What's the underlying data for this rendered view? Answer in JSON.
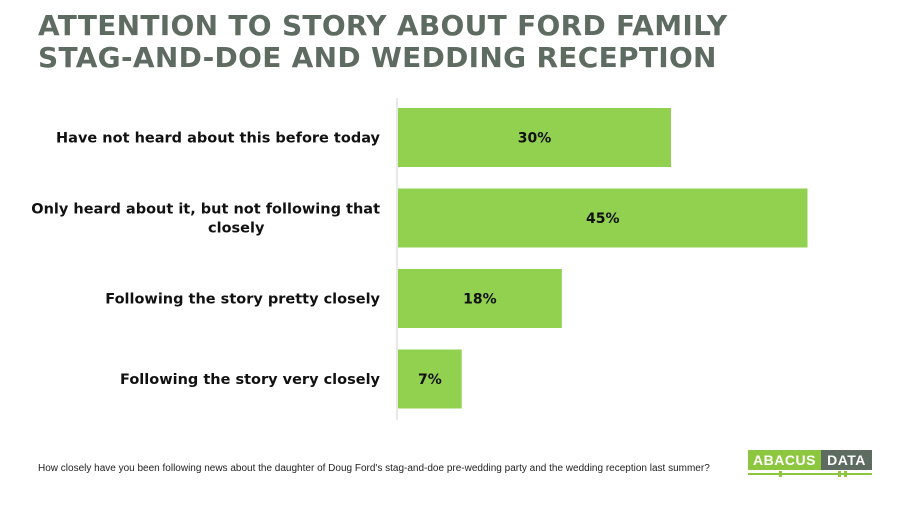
{
  "chart_data": {
    "type": "bar",
    "orientation": "horizontal",
    "title_lines": [
      "ATTENTION TO STORY ABOUT FORD FAMILY",
      "STAG-AND-DOE AND WEDDING RECEPTION"
    ],
    "categories": [
      [
        "Have not heard about this before today"
      ],
      [
        "Only heard about it, but not following that",
        "closely"
      ],
      [
        "Following the story pretty closely"
      ],
      [
        "Following the story very closely"
      ]
    ],
    "values": [
      30,
      45,
      18,
      7
    ],
    "value_labels": [
      "30%",
      "45%",
      "18%",
      "7%"
    ],
    "unit": "%",
    "xlim": [
      0,
      50
    ],
    "bar_color": "#92d050"
  },
  "footnote": "How closely have you been following news about the daughter of Doug Ford's stag-and-doe pre-wedding party and the wedding reception last summer?",
  "logo": {
    "left_text": "ABACUS",
    "right_text": "DATA"
  }
}
